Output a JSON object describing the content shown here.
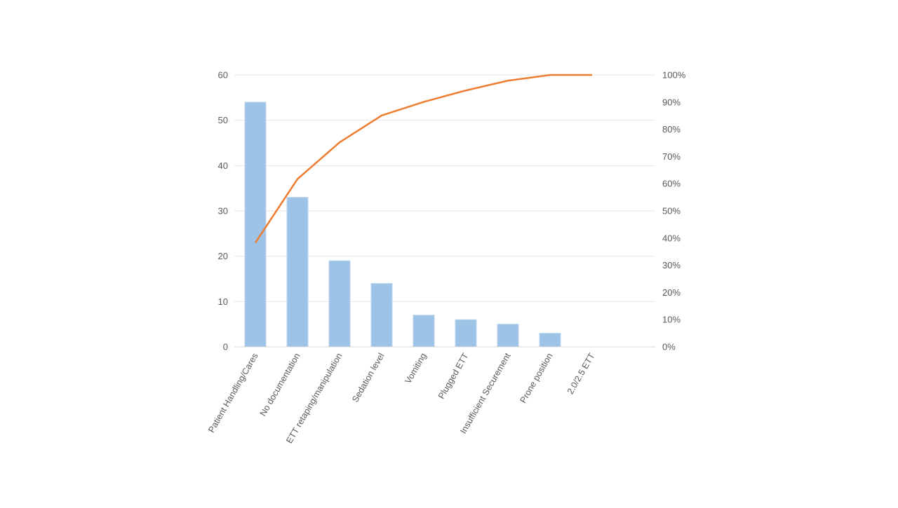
{
  "chart_data": {
    "type": "bar",
    "categories": [
      "Patient Handling/Cares",
      "No documentation",
      "ETT retaping/manipulation",
      "Sedation level",
      "Vomiting",
      "Plugged ETT",
      "Insufficient Securement",
      "Prone position",
      "2.0/2.5 ETT"
    ],
    "series": [
      {
        "type": "bar",
        "axis": "left",
        "color": "#9DC3E6",
        "values": [
          54,
          33,
          19,
          14,
          7,
          6,
          5,
          3,
          0
        ]
      },
      {
        "type": "line",
        "axis": "right",
        "color": "#ED7D31",
        "values": [
          38.3,
          61.7,
          75.2,
          85.1,
          90.1,
          94.3,
          97.9,
          100,
          100
        ]
      }
    ],
    "left_axis": {
      "ylim": [
        0,
        60
      ],
      "ticks": [
        "0",
        "10",
        "20",
        "30",
        "40",
        "50",
        "60"
      ]
    },
    "right_axis": {
      "ylim": [
        0,
        100
      ],
      "ticks": [
        "0%",
        "10%",
        "20%",
        "30%",
        "40%",
        "50%",
        "60%",
        "70%",
        "80%",
        "90%",
        "100%"
      ]
    },
    "grid": true,
    "legend": "none"
  }
}
